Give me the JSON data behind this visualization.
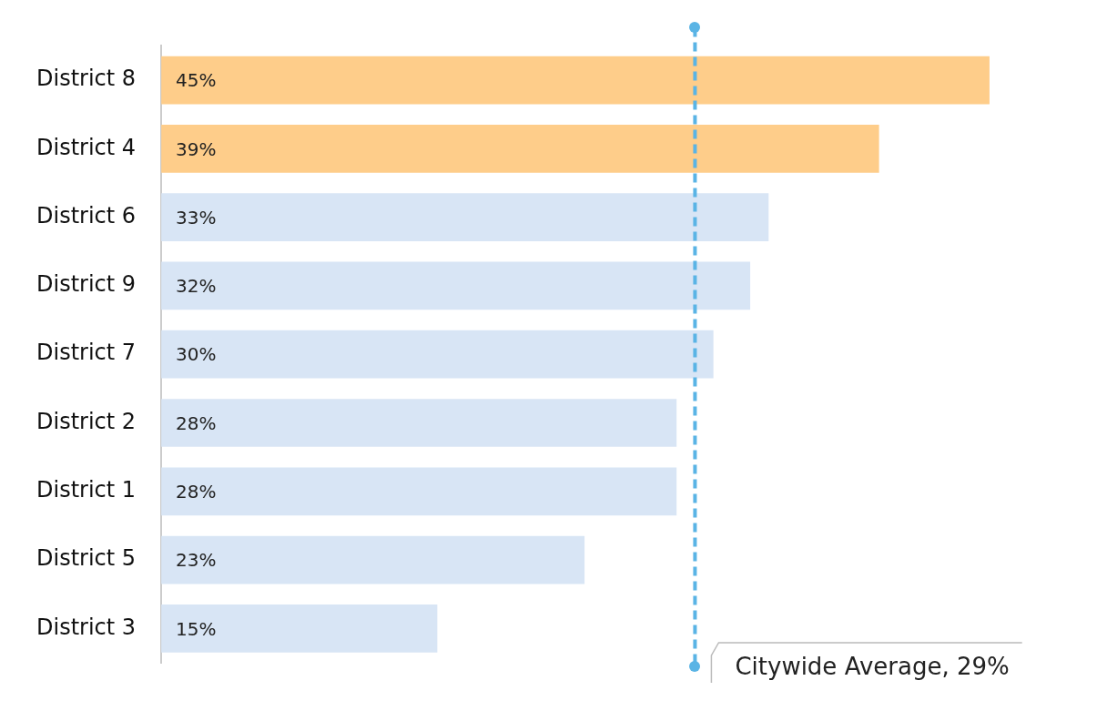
{
  "chart_data": {
    "type": "bar",
    "orientation": "horizontal",
    "categories": [
      "District 8",
      "District 4",
      "District 6",
      "District 9",
      "District 7",
      "District 2",
      "District 1",
      "District 5",
      "District 3"
    ],
    "values": [
      45,
      39,
      33,
      32,
      30,
      28,
      28,
      23,
      15
    ],
    "colors": [
      "#fecd8a",
      "#fecd8a",
      "#d8e5f5",
      "#d8e5f5",
      "#d8e5f5",
      "#d8e5f5",
      "#d8e5f5",
      "#d8e5f5",
      "#d8e5f5"
    ],
    "value_labels": [
      "45%",
      "39%",
      "33%",
      "32%",
      "30%",
      "28%",
      "28%",
      "23%",
      "15%"
    ],
    "tick_labels": "y",
    "legend": false,
    "ref_lines": [
      {
        "axis": "x",
        "value": 29,
        "label": "Citywide Average, 29%",
        "color": "#5ab4e5",
        "line_style": "dashed"
      }
    ]
  }
}
